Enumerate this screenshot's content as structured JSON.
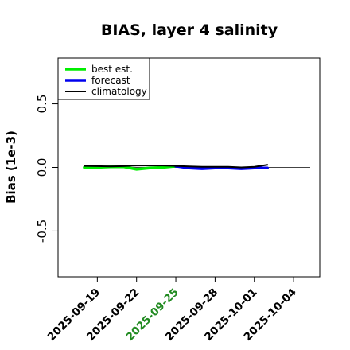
{
  "chart_data": {
    "type": "line",
    "title": "BIAS, layer 4 salinity",
    "ylabel": "Bias (1e-3)",
    "xlabel": "",
    "xlim": [
      "2025-09-16",
      "2025-10-06"
    ],
    "ylim": [
      -0.86,
      0.86
    ],
    "y_ticks": [
      -0.5,
      0.0,
      0.5
    ],
    "y_tick_labels": [
      "-0.5",
      "0.0",
      "0.5"
    ],
    "x_ticks": [
      "2025-09-19",
      "2025-09-22",
      "2025-09-25",
      "2025-09-28",
      "2025-10-01",
      "2025-10-04"
    ],
    "highlight_tick": "2025-09-25",
    "highlight_color": "#228b22",
    "reference_line": 0.0,
    "legend_position": "top-left",
    "series": [
      {
        "name": "best est.",
        "color": "#00ee00",
        "x": [
          "2025-09-18",
          "2025-09-19",
          "2025-09-20",
          "2025-09-21",
          "2025-09-22",
          "2025-09-23",
          "2025-09-24",
          "2025-09-25"
        ],
        "y": [
          0.0,
          0.0,
          0.005,
          0.005,
          -0.015,
          -0.005,
          0.0,
          0.01
        ]
      },
      {
        "name": "forecast",
        "color": "#0000ee",
        "x": [
          "2025-09-25",
          "2025-09-26",
          "2025-09-27",
          "2025-09-28",
          "2025-09-29",
          "2025-09-30",
          "2025-10-01",
          "2025-10-02"
        ],
        "y": [
          0.01,
          -0.005,
          -0.01,
          -0.005,
          -0.005,
          -0.01,
          -0.005,
          -0.005
        ]
      },
      {
        "name": "climatology",
        "color": "#000000",
        "x": [
          "2025-09-18",
          "2025-09-19",
          "2025-09-20",
          "2025-09-21",
          "2025-09-22",
          "2025-09-23",
          "2025-09-24",
          "2025-09-25",
          "2025-09-26",
          "2025-09-27",
          "2025-09-28",
          "2025-09-29",
          "2025-09-30",
          "2025-10-01",
          "2025-10-02"
        ],
        "y": [
          0.012,
          0.01,
          0.008,
          0.01,
          0.015,
          0.015,
          0.015,
          0.012,
          0.008,
          0.005,
          0.005,
          0.005,
          0.0,
          0.005,
          0.02
        ]
      }
    ]
  }
}
